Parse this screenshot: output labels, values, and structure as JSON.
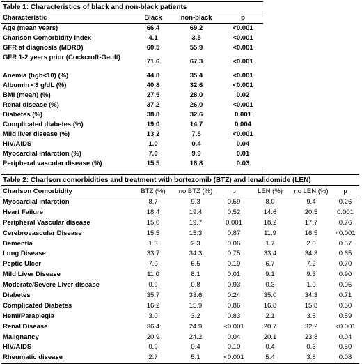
{
  "table1": {
    "caption": "Table 1: Characteristics of black and non-black patients",
    "headers": [
      "Characteristic",
      "Black",
      "non-black",
      "p"
    ],
    "rows": [
      [
        "Age (mean years)",
        "66.4",
        "69.2",
        "<0.001"
      ],
      [
        "Charlson Comorbidity Index",
        "4.1",
        "3.5",
        "<0.001"
      ],
      [
        "GFR at diagnosis (MDRD)",
        "60.5",
        "55.9",
        "<0.001"
      ],
      [
        "GFR 1-2 years prior (Cockcroft-Gault)",
        "71.6",
        "67.3",
        "<0.001"
      ],
      [
        "Anemia (hgb<10) (%)",
        "44.8",
        "35.4",
        "<0.001"
      ],
      [
        "Albumin <3 g/dL (%)",
        "40.8",
        "32.6",
        "<0.001"
      ],
      [
        "BMI (mean) (%)",
        "27.5",
        "28.0",
        "0.02"
      ],
      [
        "Renal disease (%)",
        "37.2",
        "26.0",
        "<0.001"
      ],
      [
        "Diabetes (%)",
        "38.8",
        "32.6",
        "0.001"
      ],
      [
        "Complicated diabetes (%)",
        "19.0",
        "14.7",
        "0.004"
      ],
      [
        "Mild liver disease (%)",
        "13.2",
        "7.5",
        "<0.001"
      ],
      [
        "HIV/AIDS",
        "1.0",
        "0.4",
        "0.04"
      ],
      [
        "Myocardial infarction (%)",
        "7.0",
        "9.9",
        "0.01"
      ],
      [
        "Peripheral vascular disease (%)",
        "15.5",
        "18.8",
        "0.03"
      ]
    ]
  },
  "table2": {
    "caption": "Table 2: Charlson comorbidities and treatment with bortezomib (BTZ) and lenalidomide (LEN)",
    "headers": [
      "Charlson Comorbidity",
      "BTZ (%)",
      "no BTZ (%)",
      "p",
      "LEN (%)",
      "no LEN (%)",
      "p"
    ],
    "rows": [
      [
        "Myocardial infarction",
        "8.7",
        "9.3",
        "0.59",
        "8.0",
        "9.4",
        "0.26"
      ],
      [
        "Heart Failure",
        "18.4",
        "19.4",
        "0.52",
        "14.6",
        "20.5",
        "0.001"
      ],
      [
        "Peripheral Vascular disease",
        "15.0",
        "19.7",
        "0.001",
        "18.2",
        "17.7",
        "0.76"
      ],
      [
        "Cerebrovascular Disease",
        "15.5",
        "15.3",
        "0.87",
        "11.9",
        "16.5",
        "<0.001"
      ],
      [
        "Dementia",
        "1.3",
        "2.3",
        "0.06",
        "1.7",
        "2.0",
        "0.57"
      ],
      [
        "Lung Disease",
        "33.7",
        "34.3",
        "0.75",
        "33.4",
        "34.3",
        "0.65"
      ],
      [
        "Peptic Ulcer",
        "7.9",
        "6.5",
        "0.19",
        "6.7",
        "7.2",
        "0.70"
      ],
      [
        "Mild Liver Disease",
        "11.0",
        "8.1",
        "0.01",
        "9.1",
        "9.3",
        "0.90"
      ],
      [
        "Moderate/Severe Liver disease",
        "0.9",
        "0.8",
        "0.93",
        "0.3",
        "1.0",
        "0.05"
      ],
      [
        "Diabetes",
        "35.7",
        "33.6",
        "0.24",
        "35.0",
        "34.3",
        "0.71"
      ],
      [
        "Complicated Diabetes",
        "16.2",
        "15.9",
        "0.86",
        "16.8",
        "15.8",
        "0.50"
      ],
      [
        "Hemi/Paraplegia",
        "3.0",
        "3.2",
        "0.83",
        "2.1",
        "3.5",
        "0.59"
      ],
      [
        "Renal Disease",
        "36.4",
        "24.9",
        "<0.001",
        "20.7",
        "32.2",
        "<0.001"
      ],
      [
        "Malignancy",
        "20.9",
        "24.2",
        "0.04",
        "20.1",
        "23.8",
        "0.04"
      ],
      [
        "HIV/AIDS",
        "0.9",
        "0.4",
        "0.10",
        "0.4",
        "0.6",
        "0.50"
      ],
      [
        "Rheumatic disease",
        "2.7",
        "5.1",
        "<0.001",
        "5.4",
        "3.8",
        "0.08"
      ]
    ]
  }
}
